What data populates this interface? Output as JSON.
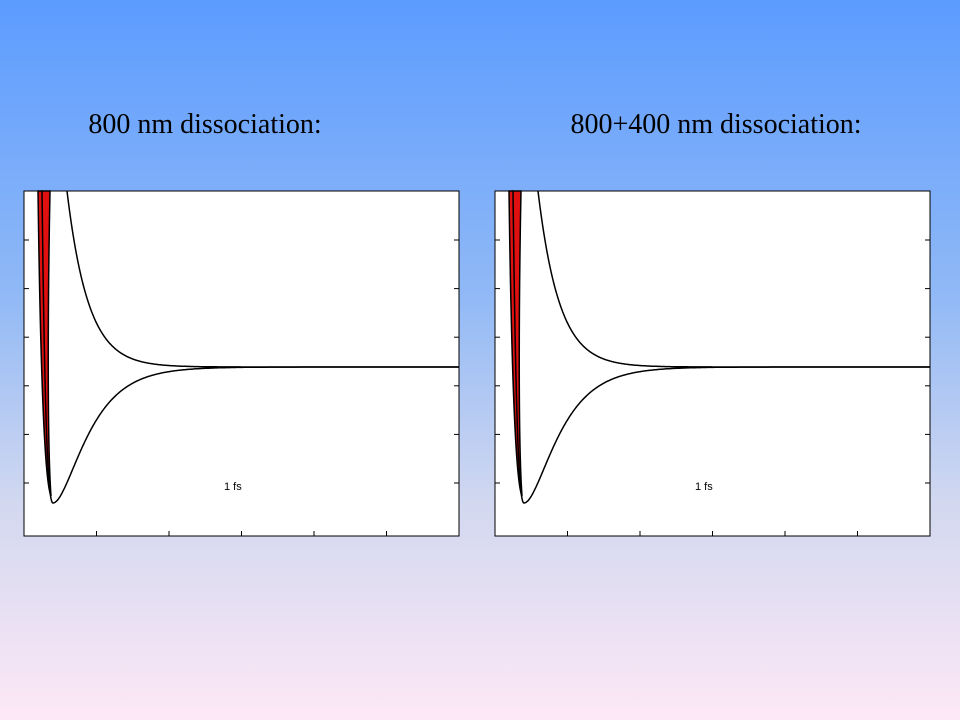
{
  "panels": [
    {
      "title": "800 nm dissociation:",
      "annotation": "1 fs"
    },
    {
      "title": "800+400 nm dissociation:",
      "annotation": "1 fs"
    }
  ]
}
